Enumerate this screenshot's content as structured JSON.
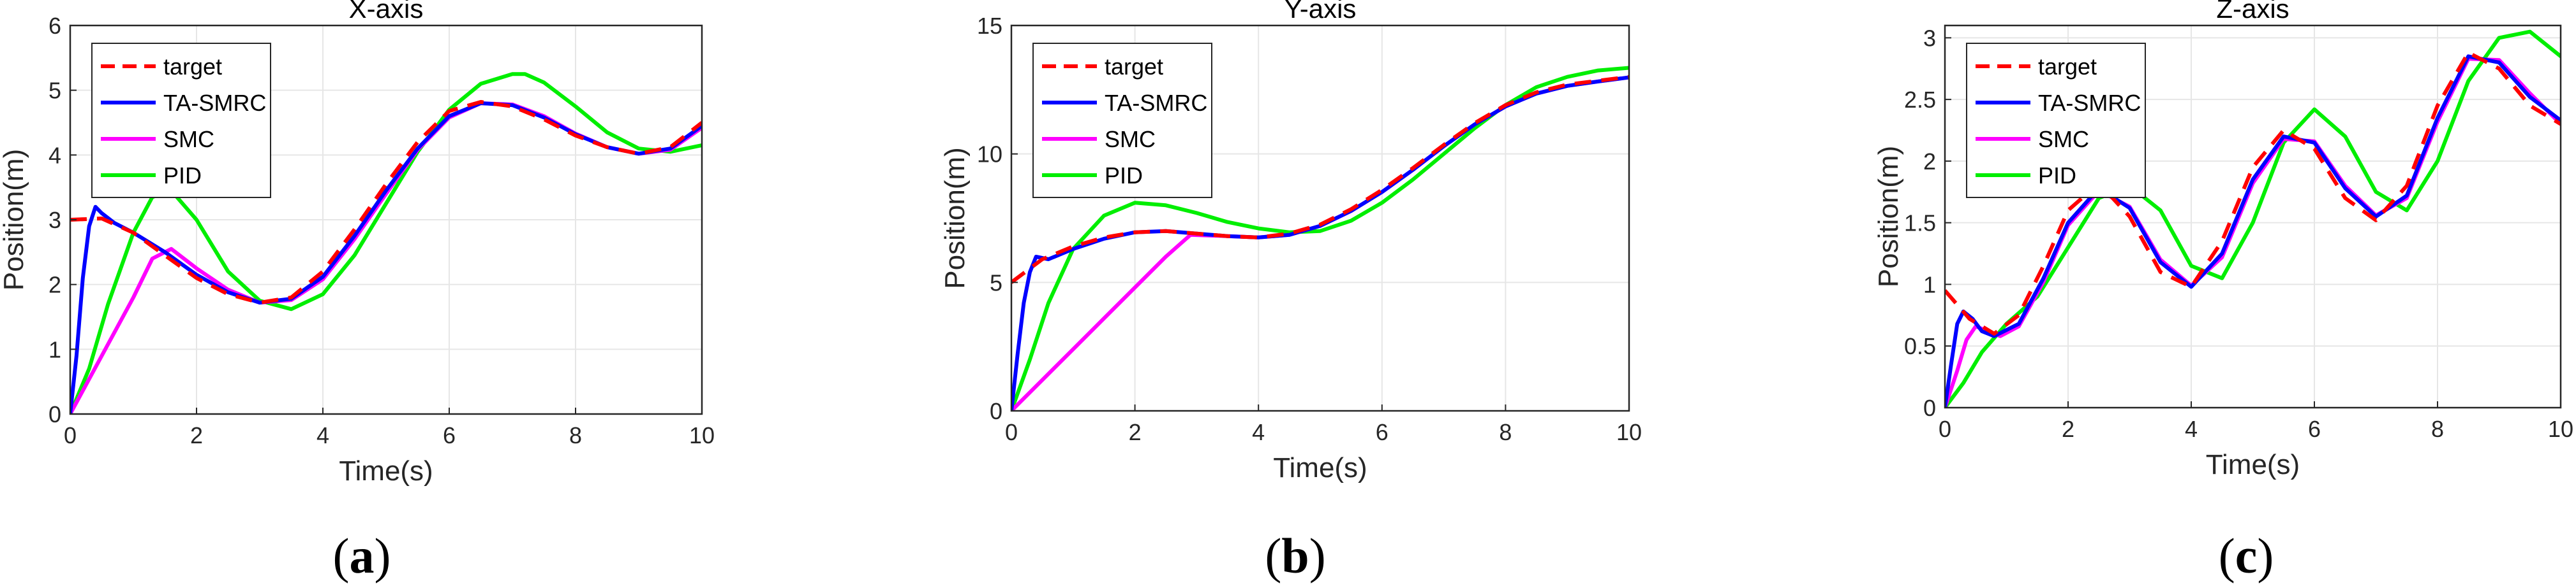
{
  "figure": {
    "panel_labels": [
      {
        "open": "(",
        "letter": "a",
        "close": ")"
      },
      {
        "open": "(",
        "letter": "b",
        "close": ")"
      },
      {
        "open": "(",
        "letter": "c",
        "close": ")"
      }
    ]
  },
  "colors": {
    "target": "#ff0000",
    "TA-SMRC": "#0000ff",
    "SMC": "#ff00ff",
    "PID": "#00ee00",
    "grid": "#e6e6e6",
    "axis": "#262626"
  },
  "chart_data": [
    {
      "type": "line",
      "title": "X-axis",
      "xlabel": "Time(s)",
      "ylabel": "Position(m)",
      "xlim": [
        0,
        10
      ],
      "ylim": [
        0,
        6
      ],
      "xticks": [
        0,
        2,
        4,
        6,
        8,
        10
      ],
      "yticks": [
        0,
        1,
        2,
        3,
        4,
        5,
        6
      ],
      "grid": true,
      "legend": "top-left",
      "series": [
        {
          "name": "target",
          "style": "dashed",
          "x": [
            0,
            0.5,
            1,
            1.5,
            2,
            2.5,
            3,
            3.5,
            4,
            4.5,
            5,
            5.5,
            6,
            6.5,
            7,
            7.5,
            8,
            8.5,
            9,
            9.5,
            10
          ],
          "y": [
            3.0,
            3.02,
            2.8,
            2.45,
            2.1,
            1.85,
            1.72,
            1.8,
            2.2,
            2.85,
            3.55,
            4.2,
            4.68,
            4.82,
            4.75,
            4.55,
            4.3,
            4.12,
            4.02,
            4.12,
            4.5
          ]
        },
        {
          "name": "TA-SMRC",
          "style": "solid",
          "x": [
            0,
            0.1,
            0.2,
            0.3,
            0.4,
            0.5,
            0.7,
            1,
            1.5,
            2,
            2.5,
            3,
            3.5,
            4,
            4.5,
            5,
            5.5,
            6,
            6.5,
            7,
            7.5,
            8,
            8.5,
            9,
            9.5,
            10
          ],
          "y": [
            0,
            0.9,
            2.1,
            2.9,
            3.2,
            3.1,
            2.95,
            2.8,
            2.5,
            2.15,
            1.88,
            1.72,
            1.78,
            2.12,
            2.75,
            3.45,
            4.1,
            4.6,
            4.8,
            4.77,
            4.58,
            4.32,
            4.12,
            4.02,
            4.1,
            4.45
          ]
        },
        {
          "name": "SMC",
          "style": "solid",
          "x": [
            0,
            0.5,
            1,
            1.3,
            1.6,
            2,
            2.5,
            3,
            3.5,
            4,
            4.5,
            5,
            5.5,
            6,
            6.5,
            7,
            7.5,
            8,
            8.5,
            9,
            9.5,
            10
          ],
          "y": [
            0,
            0.9,
            1.8,
            2.4,
            2.55,
            2.25,
            1.92,
            1.72,
            1.76,
            2.08,
            2.7,
            3.4,
            4.08,
            4.58,
            4.8,
            4.78,
            4.6,
            4.33,
            4.12,
            4.02,
            4.08,
            4.42
          ]
        },
        {
          "name": "PID",
          "style": "solid",
          "x": [
            0,
            0.3,
            0.6,
            1,
            1.3,
            1.6,
            2,
            2.5,
            3,
            3.5,
            4,
            4.5,
            5,
            5.5,
            6,
            6.5,
            7,
            7.2,
            7.5,
            8,
            8.5,
            9,
            9.5,
            10
          ],
          "y": [
            0,
            0.7,
            1.7,
            2.8,
            3.35,
            3.45,
            3.0,
            2.2,
            1.75,
            1.62,
            1.85,
            2.45,
            3.25,
            4.05,
            4.7,
            5.1,
            5.25,
            5.25,
            5.12,
            4.75,
            4.35,
            4.1,
            4.05,
            4.15
          ]
        }
      ]
    },
    {
      "type": "line",
      "title": "Y-axis",
      "xlabel": "Time(s)",
      "ylabel": "Position(m)",
      "xlim": [
        0,
        10
      ],
      "ylim": [
        0,
        15
      ],
      "xticks": [
        0,
        2,
        4,
        6,
        8,
        10
      ],
      "yticks": [
        0,
        5,
        10,
        15
      ],
      "grid": true,
      "legend": "top-left",
      "series": [
        {
          "name": "target",
          "style": "dashed",
          "x": [
            0,
            0.5,
            1,
            1.5,
            2,
            2.5,
            3,
            3.5,
            4,
            4.5,
            5,
            5.5,
            6,
            6.5,
            7,
            7.5,
            8,
            8.5,
            9,
            9.5,
            10
          ],
          "y": [
            5.0,
            5.9,
            6.4,
            6.75,
            6.95,
            7.0,
            6.9,
            6.8,
            6.75,
            6.9,
            7.25,
            7.85,
            8.6,
            9.45,
            10.35,
            11.2,
            11.9,
            12.4,
            12.7,
            12.85,
            13.0
          ]
        },
        {
          "name": "TA-SMRC",
          "style": "solid",
          "x": [
            0,
            0.1,
            0.2,
            0.3,
            0.4,
            0.6,
            1,
            1.5,
            2,
            2.5,
            3,
            3.5,
            4,
            4.5,
            5,
            5.5,
            6,
            6.5,
            7,
            7.5,
            8,
            8.5,
            9,
            9.5,
            10
          ],
          "y": [
            0,
            2.2,
            4.2,
            5.4,
            6.0,
            5.9,
            6.3,
            6.7,
            6.95,
            7.0,
            6.9,
            6.8,
            6.75,
            6.85,
            7.2,
            7.78,
            8.52,
            9.38,
            10.3,
            11.15,
            11.85,
            12.35,
            12.65,
            12.82,
            12.98
          ]
        },
        {
          "name": "SMC",
          "style": "solid",
          "x": [
            0,
            0.5,
            1,
            1.5,
            2,
            2.5,
            2.9,
            3.5,
            4,
            4.5,
            5,
            5.5,
            6,
            6.5,
            7,
            7.5,
            8,
            8.5,
            9,
            9.5,
            10
          ],
          "y": [
            0,
            1.2,
            2.4,
            3.6,
            4.8,
            6.0,
            6.85,
            6.8,
            6.75,
            6.85,
            7.2,
            7.78,
            8.52,
            9.38,
            10.3,
            11.15,
            11.85,
            12.35,
            12.65,
            12.82,
            12.98
          ]
        },
        {
          "name": "PID",
          "style": "solid",
          "x": [
            0,
            0.3,
            0.6,
            1,
            1.5,
            2,
            2.5,
            3,
            3.5,
            4,
            4.5,
            5,
            5.5,
            6,
            6.5,
            7,
            7.5,
            8,
            8.5,
            9,
            9.5,
            10
          ],
          "y": [
            0,
            2.0,
            4.2,
            6.3,
            7.6,
            8.1,
            8.0,
            7.7,
            7.35,
            7.1,
            6.95,
            7.0,
            7.4,
            8.1,
            9.0,
            10.0,
            11.0,
            11.9,
            12.6,
            13.0,
            13.25,
            13.35
          ]
        }
      ]
    },
    {
      "type": "line",
      "title": "Z-axis",
      "xlabel": "Time(s)",
      "ylabel": "Position(m)",
      "xlim": [
        0,
        10
      ],
      "ylim": [
        0,
        3.1
      ],
      "xticks": [
        0,
        2,
        4,
        6,
        8,
        10
      ],
      "yticks": [
        0,
        0.5,
        1,
        1.5,
        2,
        2.5,
        3
      ],
      "grid": true,
      "legend": "top-left",
      "series": [
        {
          "name": "target",
          "style": "dashed",
          "x": [
            0,
            0.4,
            0.8,
            1.2,
            1.6,
            2.0,
            2.5,
            3.0,
            3.5,
            4.0,
            4.5,
            5.0,
            5.5,
            6.0,
            6.5,
            7.0,
            7.5,
            8.0,
            8.5,
            9.0,
            9.5,
            10
          ],
          "y": [
            0.95,
            0.72,
            0.6,
            0.75,
            1.15,
            1.6,
            1.82,
            1.55,
            1.1,
            0.98,
            1.35,
            1.95,
            2.25,
            2.1,
            1.7,
            1.52,
            1.8,
            2.45,
            2.88,
            2.75,
            2.45,
            2.3
          ]
        },
        {
          "name": "TA-SMRC",
          "style": "solid",
          "x": [
            0,
            0.1,
            0.2,
            0.3,
            0.45,
            0.6,
            0.8,
            1.2,
            1.6,
            2.0,
            2.5,
            3.0,
            3.5,
            4.0,
            4.5,
            5.0,
            5.5,
            6.0,
            6.5,
            7.0,
            7.5,
            8.0,
            8.5,
            9.0,
            9.5,
            10
          ],
          "y": [
            0,
            0.35,
            0.68,
            0.78,
            0.72,
            0.62,
            0.58,
            0.68,
            1.05,
            1.5,
            1.78,
            1.62,
            1.18,
            0.98,
            1.25,
            1.85,
            2.2,
            2.15,
            1.78,
            1.55,
            1.72,
            2.35,
            2.85,
            2.8,
            2.52,
            2.33
          ]
        },
        {
          "name": "SMC",
          "style": "solid",
          "x": [
            0,
            0.2,
            0.35,
            0.5,
            0.7,
            0.9,
            1.2,
            1.6,
            2.0,
            2.5,
            3.0,
            3.5,
            4.0,
            4.5,
            5.0,
            5.5,
            6.0,
            6.5,
            7.0,
            7.5,
            8.0,
            8.5,
            9.0,
            9.5,
            10
          ],
          "y": [
            0,
            0.3,
            0.55,
            0.66,
            0.62,
            0.58,
            0.66,
            1.02,
            1.48,
            1.76,
            1.63,
            1.2,
            0.99,
            1.22,
            1.82,
            2.18,
            2.16,
            1.8,
            1.56,
            1.7,
            2.32,
            2.83,
            2.82,
            2.55,
            2.3
          ]
        },
        {
          "name": "PID",
          "style": "solid",
          "x": [
            0,
            0.3,
            0.6,
            1.0,
            1.5,
            2.0,
            2.5,
            3.0,
            3.5,
            4.0,
            4.5,
            5.0,
            5.5,
            6.0,
            6.5,
            7.0,
            7.5,
            8.0,
            8.5,
            9.0,
            9.5,
            10
          ],
          "y": [
            0,
            0.2,
            0.45,
            0.68,
            0.9,
            1.3,
            1.7,
            1.8,
            1.6,
            1.15,
            1.05,
            1.5,
            2.15,
            2.42,
            2.2,
            1.75,
            1.6,
            2.0,
            2.65,
            3.0,
            3.05,
            2.85
          ]
        }
      ]
    }
  ]
}
